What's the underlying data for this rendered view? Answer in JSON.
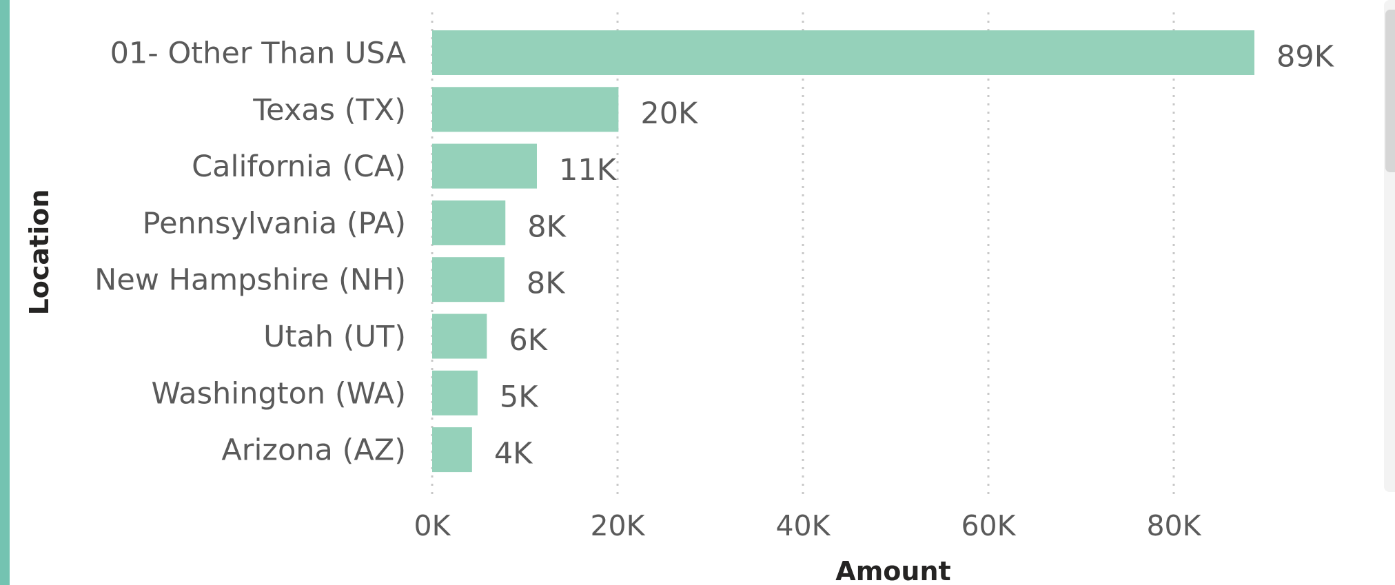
{
  "colors": {
    "bar": "#95d1ba",
    "accent": "#74c3b1"
  },
  "chart_data": {
    "type": "bar",
    "orientation": "horizontal",
    "categories": [
      "01- Other Than USA",
      "Texas (TX)",
      "California (CA)",
      "Pennsylvania (PA)",
      "New Hampshire (NH)",
      "Utah (UT)",
      "Washington (WA)",
      "Arizona (AZ)"
    ],
    "values": [
      88700,
      20100,
      11300,
      7900,
      7800,
      5900,
      4900,
      4300
    ],
    "data_labels": [
      "89K",
      "20K",
      "11K",
      "8K",
      "8K",
      "6K",
      "5K",
      "4K"
    ],
    "xlabel": "Amount",
    "ylabel": "Location",
    "xlim": [
      0,
      100000
    ],
    "x_ticks": [
      0,
      20000,
      40000,
      60000,
      80000
    ],
    "x_tick_labels": [
      "0K",
      "20K",
      "40K",
      "60K",
      "80K"
    ],
    "grid": "vertical dotted"
  }
}
